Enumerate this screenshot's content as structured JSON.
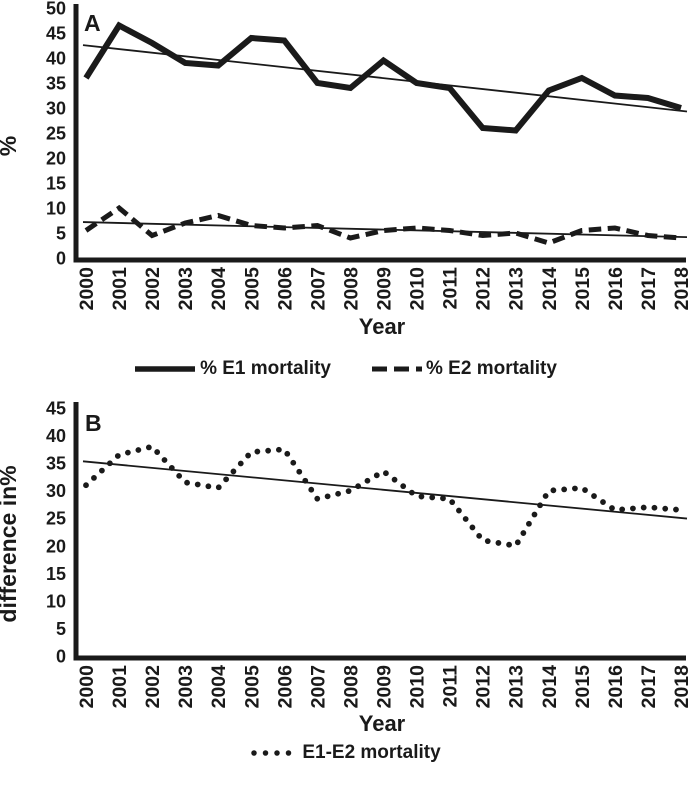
{
  "style": {
    "ink": "#1a1a1a",
    "background": "#ffffff"
  },
  "chart_data": [
    {
      "type": "line",
      "panel_label": "A",
      "xlabel": "Year",
      "ylabel": "%",
      "ylim": [
        0,
        50
      ],
      "ytick_step": 5,
      "grid": false,
      "legend_position": "bottom",
      "categories": [
        "2000",
        "2001",
        "2002",
        "2003",
        "2004",
        "2005",
        "2006",
        "2007",
        "2008",
        "2009",
        "2010",
        "2011",
        "2012",
        "2013",
        "2014",
        "2015",
        "2016",
        "2017",
        "2018"
      ],
      "series": [
        {
          "name": "% E1 mortality",
          "line_style": "solid-thick",
          "trendline": true,
          "values": [
            36,
            46.5,
            43,
            39,
            38.5,
            44,
            43.5,
            35,
            34,
            39.5,
            35,
            34,
            26,
            25.5,
            33.5,
            36,
            32.5,
            32,
            30
          ]
        },
        {
          "name": "% E2 mortality",
          "line_style": "dashed",
          "trendline": true,
          "values": [
            5.5,
            10,
            4.5,
            7,
            8.5,
            6.5,
            6,
            6.5,
            4,
            5.5,
            6,
            5.5,
            4.5,
            5,
            3,
            5.5,
            6,
            4.5,
            4
          ]
        }
      ]
    },
    {
      "type": "line",
      "panel_label": "B",
      "xlabel": "Year",
      "ylabel": "difference in%",
      "ylim": [
        0,
        45
      ],
      "ytick_step": 5,
      "grid": false,
      "legend_position": "bottom",
      "categories": [
        "2000",
        "2001",
        "2002",
        "2003",
        "2004",
        "2005",
        "2006",
        "2007",
        "2008",
        "2009",
        "2010",
        "2011",
        "2012",
        "2013",
        "2014",
        "2015",
        "2016",
        "2017",
        "2018"
      ],
      "series": [
        {
          "name": "E1-E2 mortality",
          "line_style": "round-dotted",
          "trendline": true,
          "values": [
            31,
            36.5,
            38,
            31.5,
            30.5,
            37,
            37.5,
            28.5,
            30,
            33.5,
            29,
            28.5,
            21,
            20,
            30,
            30.5,
            26.5,
            27,
            26.5
          ]
        }
      ]
    }
  ]
}
